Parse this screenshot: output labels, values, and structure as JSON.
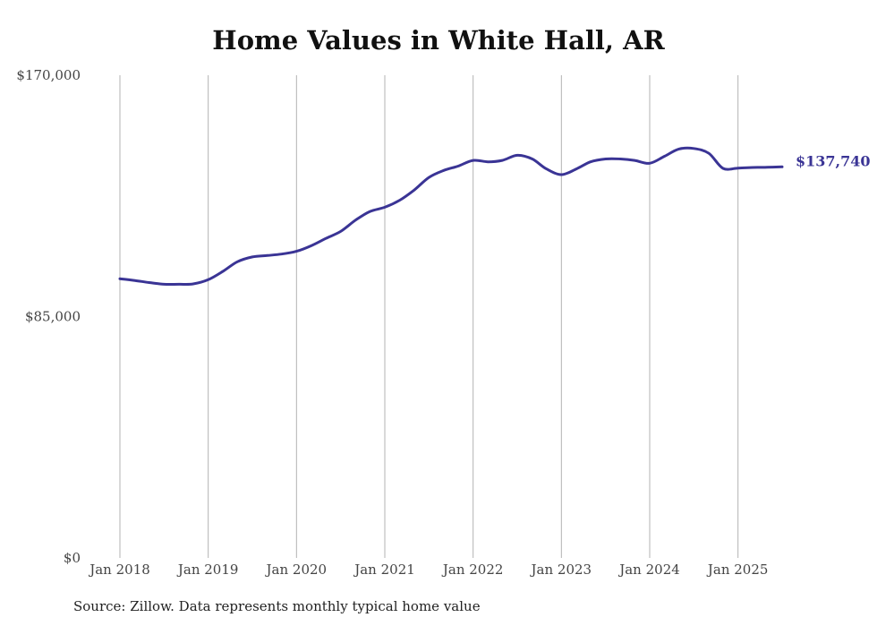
{
  "chart_data": {
    "type": "line",
    "title": "Home Values in White Hall, AR",
    "ylim": [
      0,
      170000
    ],
    "y_ticks": [
      "$0",
      "$85,000",
      "$170,000"
    ],
    "y_tick_values": [
      0,
      85000,
      170000
    ],
    "x_ticks": [
      "Jan 2018",
      "Jan 2019",
      "Jan 2020",
      "Jan 2021",
      "Jan 2022",
      "Jan 2023",
      "Jan 2024",
      "Jan 2025"
    ],
    "x_tick_values": [
      2018,
      2019,
      2020,
      2021,
      2022,
      2023,
      2024,
      2025
    ],
    "xlim": [
      2018,
      2025.5
    ],
    "grid": "vertical",
    "series": [
      {
        "color": "#3a3495",
        "points": [
          [
            2018.0,
            98300
          ],
          [
            2018.17,
            97700
          ],
          [
            2018.33,
            97000
          ],
          [
            2018.5,
            96400
          ],
          [
            2018.67,
            96400
          ],
          [
            2018.83,
            96500
          ],
          [
            2019.0,
            98000
          ],
          [
            2019.17,
            101000
          ],
          [
            2019.33,
            104300
          ],
          [
            2019.5,
            106000
          ],
          [
            2019.67,
            106500
          ],
          [
            2019.83,
            107000
          ],
          [
            2020.0,
            108000
          ],
          [
            2020.17,
            110000
          ],
          [
            2020.33,
            112500
          ],
          [
            2020.5,
            115000
          ],
          [
            2020.67,
            119000
          ],
          [
            2020.83,
            122000
          ],
          [
            2021.0,
            123500
          ],
          [
            2021.17,
            126000
          ],
          [
            2021.33,
            129500
          ],
          [
            2021.5,
            134000
          ],
          [
            2021.67,
            136500
          ],
          [
            2021.83,
            138000
          ],
          [
            2022.0,
            140000
          ],
          [
            2022.17,
            139500
          ],
          [
            2022.33,
            140000
          ],
          [
            2022.5,
            141800
          ],
          [
            2022.67,
            140500
          ],
          [
            2022.83,
            137000
          ],
          [
            2023.0,
            135000
          ],
          [
            2023.17,
            137000
          ],
          [
            2023.33,
            139500
          ],
          [
            2023.5,
            140500
          ],
          [
            2023.67,
            140500
          ],
          [
            2023.83,
            140000
          ],
          [
            2024.0,
            139000
          ],
          [
            2024.17,
            141500
          ],
          [
            2024.33,
            144000
          ],
          [
            2024.5,
            144200
          ],
          [
            2024.67,
            142500
          ],
          [
            2024.83,
            137200
          ],
          [
            2025.0,
            137300
          ],
          [
            2025.17,
            137500
          ],
          [
            2025.33,
            137600
          ],
          [
            2025.5,
            137740
          ]
        ]
      }
    ],
    "end_label": "$137,740"
  },
  "source": "Source: Zillow. Data represents monthly typical home value"
}
